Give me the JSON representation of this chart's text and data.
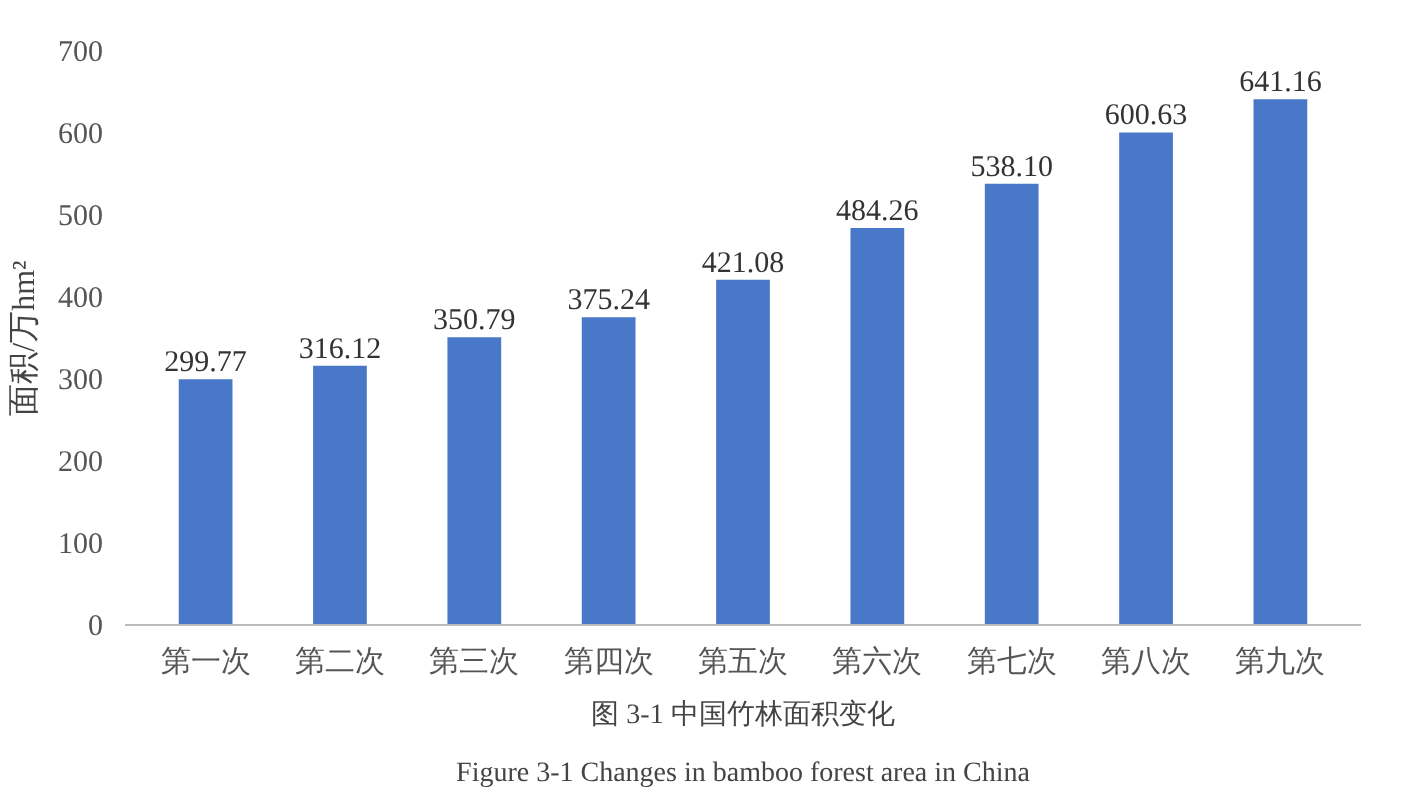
{
  "chart_data": {
    "type": "bar",
    "ylabel": "面积/万hm²",
    "categories": [
      "第一次",
      "第二次",
      "第三次",
      "第四次",
      "第五次",
      "第六次",
      "第七次",
      "第八次",
      "第九次"
    ],
    "values": [
      299.77,
      316.12,
      350.79,
      375.24,
      421.08,
      484.26,
      538.1,
      600.63,
      641.16
    ],
    "value_labels": [
      "299.77",
      "316.12",
      "350.79",
      "375.24",
      "421.08",
      "484.26",
      "538.10",
      "600.63",
      "641.16"
    ],
    "color": "#4a78c8",
    "ylim": [
      0,
      700
    ],
    "yticks": [
      0,
      100,
      200,
      300,
      400,
      500,
      600,
      700
    ],
    "grid": false,
    "annotations": [
      "图 3-1 中国竹林面积变化",
      "Figure 3-1 Changes in bamboo forest area in China"
    ]
  }
}
